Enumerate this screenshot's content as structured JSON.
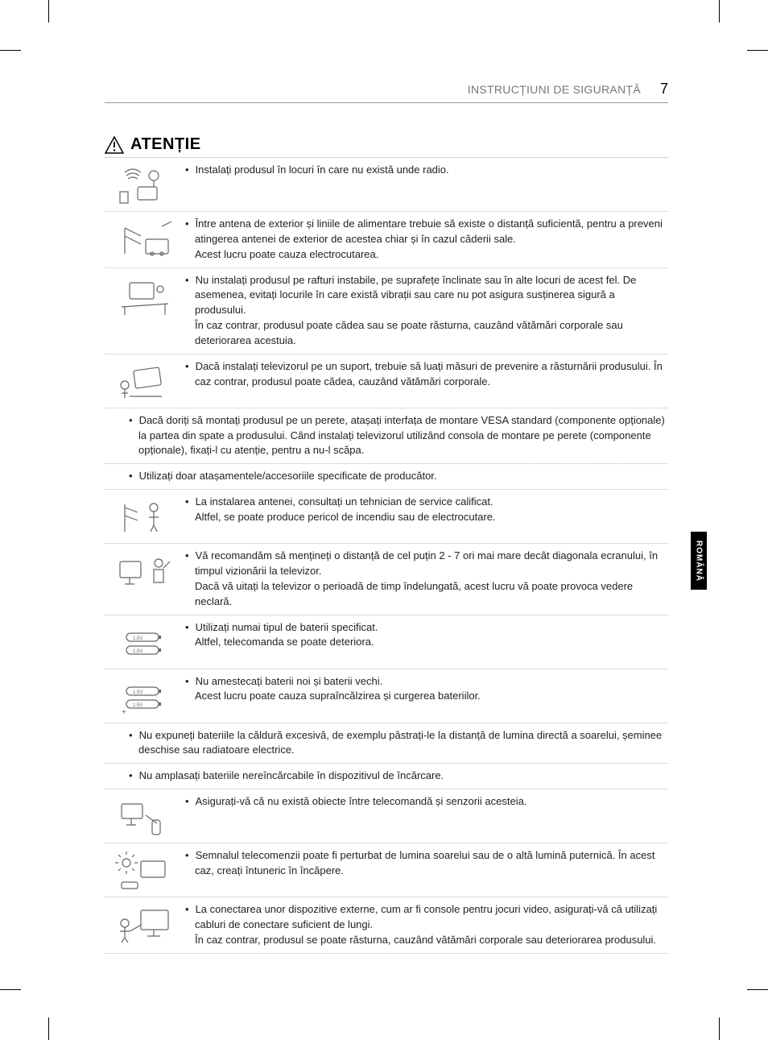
{
  "header": {
    "title": "INSTRUCȚIUNI DE SIGURANȚĂ",
    "page_number": "7"
  },
  "section": {
    "title": "ATENȚIE"
  },
  "side_tab": "ROMÂNĂ",
  "items": [
    {
      "type": "icon",
      "icon": "radio-waves",
      "text": "Instalați produsul în locuri în care nu există unde radio."
    },
    {
      "type": "icon",
      "icon": "antenna-distance",
      "text": "Între antena de exterior și liniile de alimentare trebuie să existe o distanță suficientă, pentru a preveni atingerea antenei de exterior de acestea chiar și în cazul căderii sale.\nAcest lucru poate cauza electrocutarea."
    },
    {
      "type": "icon",
      "icon": "unstable-shelf",
      "text": "Nu instalați produsul pe rafturi instabile, pe suprafețe înclinate sau în alte locuri de acest fel. De asemenea, evitați locurile în care există vibrații sau care nu pot asigura susținerea sigură a produsului.\nÎn caz contrar, produsul poate cădea sau se poate răsturna, cauzând vătămări corporale sau deteriorarea acestuia."
    },
    {
      "type": "icon",
      "icon": "tv-stand-tip",
      "text": "Dacă instalați televizorul pe un suport, trebuie să luați măsuri de prevenire a răsturnării produsului. În caz contrar, produsul poate cădea, cauzând vătămări corporale."
    },
    {
      "type": "full",
      "text": "Dacă doriți să montați produsul pe un perete, atașați interfața de montare VESA standard (componente opționale) la partea din spate a produsului. Când instalați televizorul utilizând consola de montare pe perete (componente opționale), fixați-l cu atenție, pentru a nu-l scăpa."
    },
    {
      "type": "full",
      "text": "Utilizați doar atașamentele/accesoriile specificate de producător."
    },
    {
      "type": "icon",
      "icon": "technician-antenna",
      "text": "La instalarea antenei, consultați un tehnician de service calificat.\nAltfel, se poate produce pericol de incendiu sau de electrocutare."
    },
    {
      "type": "icon",
      "icon": "viewing-distance",
      "text": "Vă recomandăm să mențineți o distanță de cel puțin 2 - 7 ori mai mare decât diagonala ecranului, în timpul vizionării la televizor.\nDacă vă uitați la televizor o perioadă de timp îndelungată, acest lucru vă poate provoca vedere neclară."
    },
    {
      "type": "icon",
      "icon": "batteries-type",
      "text": "Utilizați numai tipul de baterii specificat.\nAltfel, telecomanda se poate deteriora."
    },
    {
      "type": "icon",
      "icon": "batteries-mix",
      "text": "Nu amestecați baterii noi și baterii vechi.\nAcest lucru poate cauza supraîncălzirea și curgerea bateriilor."
    },
    {
      "type": "full",
      "text": "Nu expuneți bateriile la căldură excesivă, de exemplu păstrați-le la distanță de lumina directă a soarelui, șeminee deschise sau radiatoare electrice."
    },
    {
      "type": "full",
      "text": "Nu amplasați bateriile nereîncărcabile în dispozitivul de încărcare."
    },
    {
      "type": "icon",
      "icon": "remote-obstacle",
      "text": "Asigurați-vă că nu există obiecte între telecomandă și senzorii acesteia."
    },
    {
      "type": "icon",
      "icon": "remote-sunlight",
      "text": "Semnalul telecomenzii poate fi perturbat de lumina soarelui sau de o altă lumină puternică. În acest caz, creați întuneric în încăpere."
    },
    {
      "type": "icon",
      "icon": "cable-length",
      "text": "La conectarea unor dispozitive externe, cum ar fi console pentru jocuri video, asigurați-vă că utilizați cabluri de conectare suficient de lungi.\nÎn caz contrar, produsul se poate răsturna, cauzând vătămări corporale sau deteriorarea produsului."
    }
  ]
}
